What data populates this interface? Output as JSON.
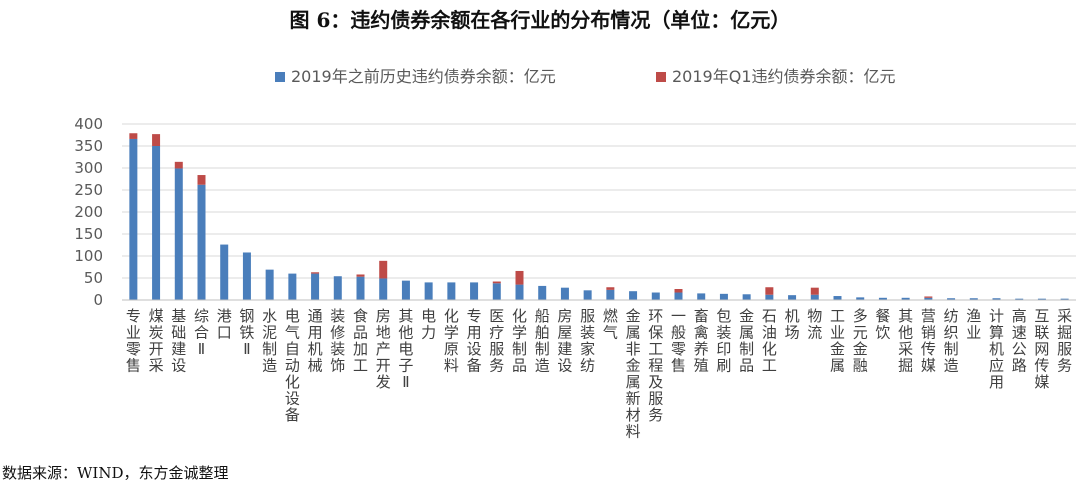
{
  "title": "图 6：违约债券余额在各行业的分布情况（单位：亿元）",
  "source": "数据来源：WIND，东方金诚整理",
  "colors": {
    "historical": "#4a7ebb",
    "q1": "#be4b48",
    "grid": "#d9d9d9",
    "axis_text": "#595959"
  },
  "chart_data": {
    "type": "bar",
    "stacked": true,
    "legend_position": "top",
    "grid": true,
    "ylim": [
      0,
      400
    ],
    "yticks": [
      0,
      50,
      100,
      150,
      200,
      250,
      300,
      350,
      400
    ],
    "categories": [
      "专业零售",
      "煤炭开采",
      "基础建设",
      "综合Ⅱ",
      "港口",
      "钢铁Ⅱ",
      "水泥制造",
      "电气自动化设备",
      "通用机械",
      "装修装饰",
      "食品加工",
      "房地产开发",
      "其他电子Ⅱ",
      "电力",
      "化学原料",
      "专用设备",
      "医疗服务",
      "化学制品",
      "船舶制造",
      "房屋建设",
      "服装家纺",
      "燃气",
      "金属非金属新材料",
      "环保工程及服务",
      "一般零售",
      "畜禽养殖",
      "包装印刷",
      "金属制品",
      "石油化工",
      "机场",
      "物流",
      "工业金属",
      "多元金融",
      "餐饮",
      "其他采掘",
      "营销传媒",
      "纺织制造",
      "渔业",
      "计算机应用",
      "高速公路",
      "互联网传媒",
      "采掘服务"
    ],
    "series": [
      {
        "name": "2019年之前历史违约债券余额：亿元",
        "values": [
          366,
          350,
          299,
          262,
          126,
          108,
          69,
          60,
          60,
          54,
          53,
          49,
          44,
          40,
          40,
          40,
          38,
          35,
          32,
          28,
          22,
          23,
          20,
          17,
          17,
          15,
          14,
          13,
          12,
          11,
          12,
          9,
          6,
          5,
          5,
          5,
          4,
          4,
          4,
          3,
          3,
          3
        ]
      },
      {
        "name": "2019年Q1违约债券余额：亿元",
        "values": [
          13,
          27,
          15,
          22,
          0,
          0,
          0,
          0,
          3,
          0,
          5,
          40,
          0,
          0,
          0,
          0,
          4,
          31,
          0,
          0,
          0,
          6,
          0,
          0,
          8,
          0,
          0,
          0,
          17,
          0,
          16,
          0,
          0,
          0,
          0,
          3,
          0,
          0,
          0,
          0,
          0,
          0
        ]
      }
    ]
  }
}
